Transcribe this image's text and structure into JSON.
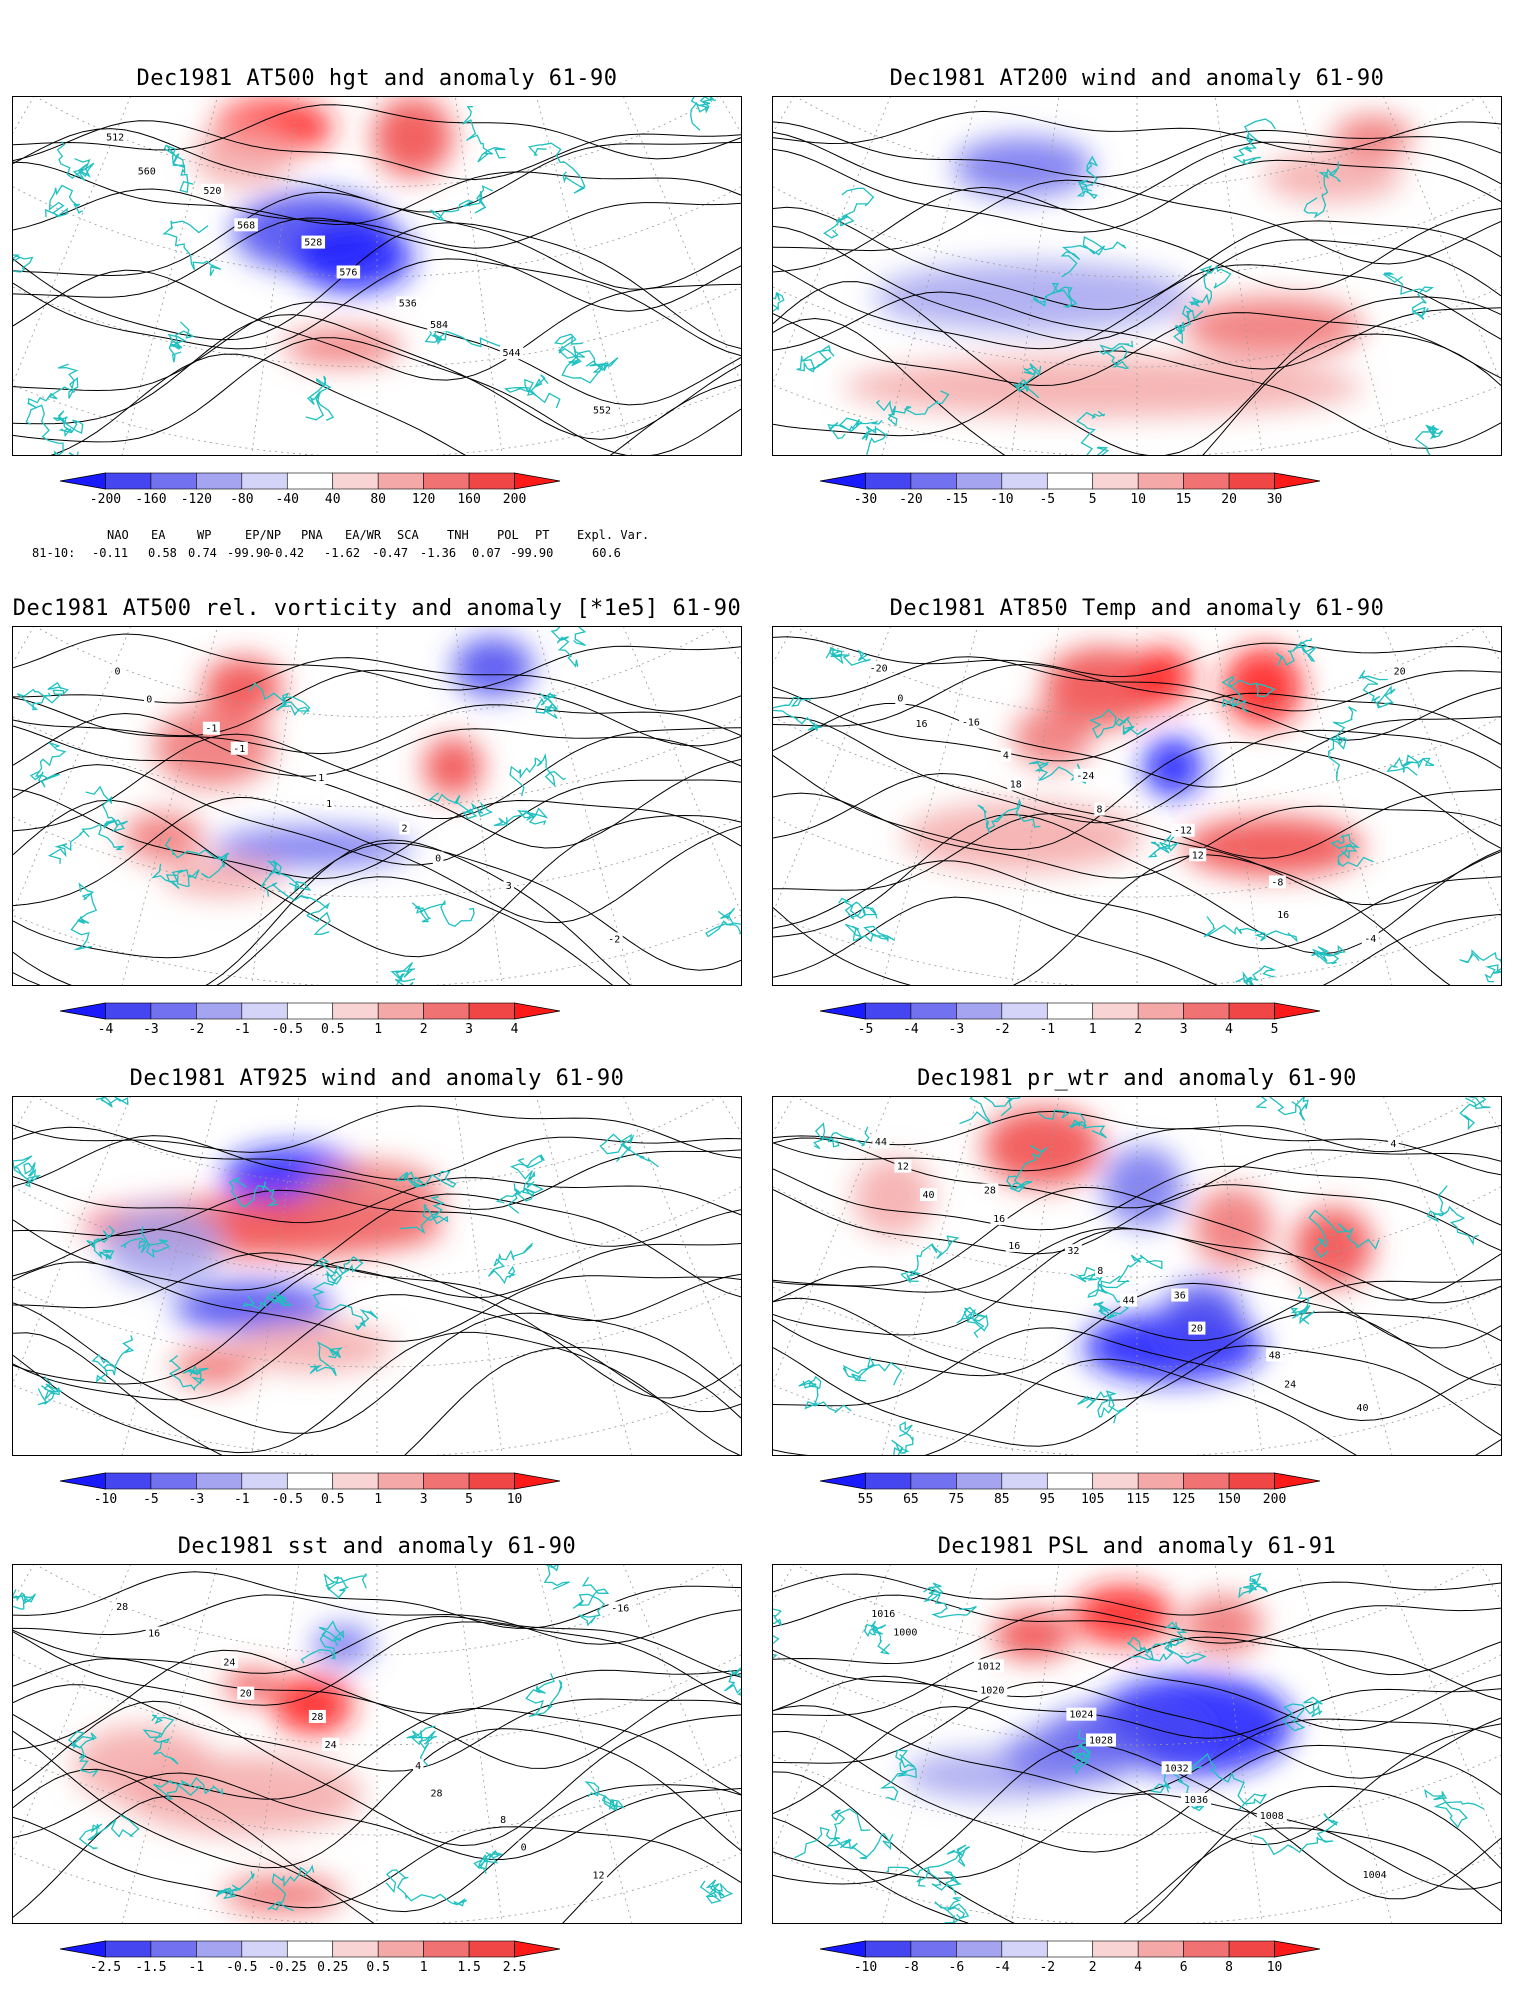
{
  "panels": [
    {
      "id": "p1",
      "title": "Dec1981 AT500 hgt and anomaly 61-90",
      "legend_labels": [
        "-200",
        "-160",
        "-120",
        "-80",
        "-40",
        "40",
        "80",
        "120",
        "160",
        "200"
      ],
      "contour_labels": [
        "512",
        "520",
        "528",
        "536",
        "544",
        "552",
        "560",
        "568",
        "576",
        "584"
      ],
      "indices": {
        "headers": [
          "NAO",
          "EA",
          "WP",
          "EP/NP",
          "PNA",
          "EA/WR",
          "SCA",
          "TNH",
          "POL",
          "PT",
          "Expl. Var."
        ],
        "row_label": "81-10:",
        "values": [
          "-0.11",
          "0.58",
          "0.74",
          "-99.90",
          "-0.42",
          "-1.62",
          "-0.47",
          "-1.36",
          "0.07",
          "-99.90",
          "60.6"
        ]
      }
    },
    {
      "id": "p2",
      "title": "Dec1981 AT200 wind and anomaly 61-90",
      "legend_labels": [
        "-30",
        "-20",
        "-15",
        "-10",
        "-5",
        "5",
        "10",
        "15",
        "20",
        "30"
      ],
      "contour_labels": []
    },
    {
      "id": "p3",
      "title": "Dec1981 AT500 rel. vorticity and anomaly [*1e5] 61-90",
      "legend_labels": [
        "-4",
        "-3",
        "-2",
        "-1",
        "-0.5",
        "0.5",
        "1",
        "2",
        "3",
        "4"
      ],
      "contour_labels": [
        "0",
        "-1",
        "1",
        "2",
        "3",
        "-2",
        "0",
        "-1",
        "1",
        "0"
      ]
    },
    {
      "id": "p4",
      "title": "Dec1981 AT850 Temp and anomaly 61-90",
      "legend_labels": [
        "-5",
        "-4",
        "-3",
        "-2",
        "-1",
        "1",
        "2",
        "3",
        "4",
        "5"
      ],
      "contour_labels": [
        "-20",
        "-16",
        "-24",
        "-12",
        "-8",
        "-4",
        "0",
        "4",
        "8",
        "12",
        "16",
        "20",
        "16",
        "18"
      ]
    },
    {
      "id": "p5",
      "title": "Dec1981 AT925 wind and anomaly 61-90",
      "legend_labels": [
        "-10",
        "-5",
        "-3",
        "-1",
        "-0.5",
        "0.5",
        "1",
        "3",
        "5",
        "10"
      ],
      "contour_labels": []
    },
    {
      "id": "p6",
      "title": "Dec1981 pr_wtr and anomaly 61-90",
      "legend_labels": [
        "55",
        "65",
        "75",
        "85",
        "95",
        "105",
        "115",
        "125",
        "150",
        "200"
      ],
      "contour_labels": [
        "44",
        "28",
        "32",
        "36",
        "48",
        "40",
        "12",
        "16",
        "8",
        "20",
        "24",
        "4",
        "40",
        "16",
        "44"
      ]
    },
    {
      "id": "p7",
      "title": "Dec1981 sst and anomaly 61-90",
      "legend_labels": [
        "-2.5",
        "-1.5",
        "-1",
        "-0.5",
        "-0.25",
        "0.25",
        "0.5",
        "1",
        "1.5",
        "2.5"
      ],
      "contour_labels": [
        "28",
        "24",
        "28",
        "4",
        "8",
        "12",
        "16",
        "20",
        "24",
        "28",
        "0",
        "-16"
      ]
    },
    {
      "id": "p8",
      "title": "Dec1981 PSL and anomaly 61-91",
      "legend_labels": [
        "-10",
        "-8",
        "-6",
        "-4",
        "-2",
        "2",
        "4",
        "6",
        "8",
        "10"
      ],
      "contour_labels": [
        "1016",
        "1012",
        "1024",
        "1032",
        "1008",
        "1004",
        "1000",
        "1020",
        "1028",
        "1036"
      ]
    }
  ],
  "colors": {
    "blue_scale": [
      "#1a1aff",
      "#4646f0",
      "#7272f0",
      "#a4a4f0",
      "#d4d4f8"
    ],
    "red_scale": [
      "#f8d4d4",
      "#f4a8a8",
      "#f07272",
      "#f04646",
      "#ff1a1a"
    ],
    "coast": "#20c0c0",
    "contour": "#000000",
    "grid": "#999999"
  }
}
